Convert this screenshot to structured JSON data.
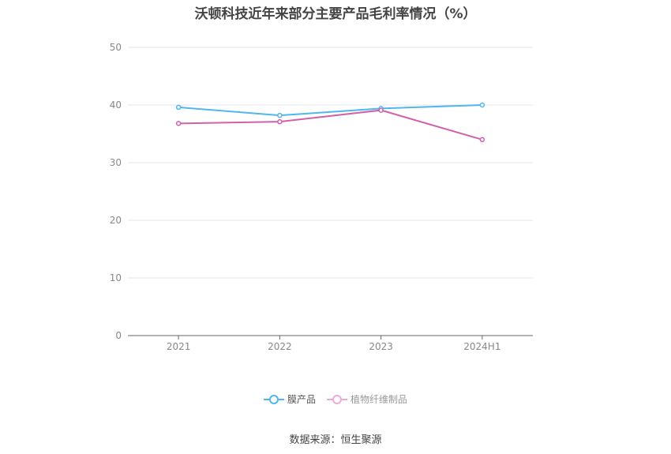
{
  "title": "沃顿科技近年来部分主要产品毛利率情况（%）",
  "source": "数据来源：恒生聚源",
  "chart_data": {
    "type": "line",
    "categories": [
      "2021",
      "2022",
      "2023",
      "2024H1"
    ],
    "ylim": [
      0,
      50
    ],
    "yticks": [
      0,
      10,
      20,
      30,
      40,
      50
    ],
    "grid": true,
    "legend_position": "bottom",
    "series": [
      {
        "name": "膜产品",
        "values": [
          39.6,
          38.2,
          39.4,
          40.0
        ],
        "color": "#4db7ee"
      },
      {
        "name": "植物纤维制品",
        "values": [
          36.8,
          37.1,
          39.1,
          34.0
        ],
        "color": "#d160ab"
      }
    ]
  }
}
